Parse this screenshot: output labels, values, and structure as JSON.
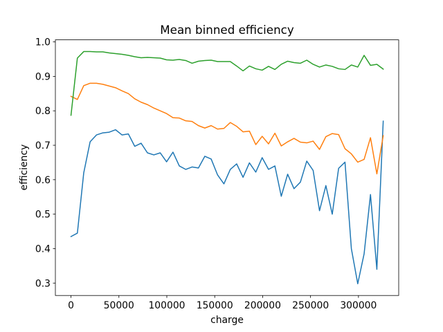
{
  "chart_data": {
    "type": "line",
    "title": "Mean binned efficiency",
    "xlabel": "charge",
    "ylabel": "efficiency",
    "x": [
      0,
      6650,
      13300,
      19950,
      26600,
      33250,
      39900,
      46550,
      53200,
      59850,
      66500,
      73150,
      79800,
      86450,
      93100,
      99750,
      106400,
      113050,
      119700,
      126350,
      133000,
      139650,
      146300,
      152950,
      159600,
      166250,
      172900,
      179550,
      186200,
      192850,
      199500,
      206150,
      212800,
      219450,
      226100,
      232750,
      239400,
      246050,
      252700,
      259350,
      266000,
      272650,
      279300,
      285950,
      292600,
      299250,
      305900,
      312550,
      319200,
      325850
    ],
    "series": [
      {
        "color": "#1f77b4",
        "values": [
          0.435,
          0.445,
          0.62,
          0.71,
          0.73,
          0.736,
          0.738,
          0.745,
          0.73,
          0.733,
          0.697,
          0.706,
          0.678,
          0.672,
          0.678,
          0.652,
          0.68,
          0.64,
          0.63,
          0.637,
          0.634,
          0.668,
          0.66,
          0.614,
          0.588,
          0.63,
          0.646,
          0.607,
          0.649,
          0.622,
          0.664,
          0.63,
          0.64,
          0.552,
          0.616,
          0.574,
          0.593,
          0.654,
          0.627,
          0.51,
          0.583,
          0.5,
          0.633,
          0.651,
          0.4,
          0.298,
          0.385,
          0.557,
          0.34,
          0.77
        ]
      },
      {
        "color": "#ff7f0e",
        "values": [
          0.842,
          0.833,
          0.873,
          0.88,
          0.88,
          0.877,
          0.872,
          0.867,
          0.858,
          0.85,
          0.835,
          0.825,
          0.818,
          0.808,
          0.8,
          0.792,
          0.78,
          0.779,
          0.771,
          0.769,
          0.757,
          0.75,
          0.757,
          0.747,
          0.749,
          0.766,
          0.755,
          0.739,
          0.741,
          0.702,
          0.726,
          0.704,
          0.735,
          0.698,
          0.71,
          0.72,
          0.709,
          0.707,
          0.712,
          0.688,
          0.725,
          0.734,
          0.731,
          0.69,
          0.675,
          0.651,
          0.659,
          0.722,
          0.617,
          0.728
        ]
      },
      {
        "color": "#2ca02c",
        "values": [
          0.787,
          0.953,
          0.972,
          0.972,
          0.971,
          0.971,
          0.968,
          0.966,
          0.964,
          0.961,
          0.957,
          0.954,
          0.955,
          0.954,
          0.953,
          0.948,
          0.947,
          0.949,
          0.946,
          0.938,
          0.944,
          0.946,
          0.947,
          0.943,
          0.943,
          0.943,
          0.93,
          0.916,
          0.93,
          0.922,
          0.918,
          0.929,
          0.92,
          0.935,
          0.944,
          0.94,
          0.938,
          0.947,
          0.935,
          0.927,
          0.933,
          0.929,
          0.922,
          0.92,
          0.933,
          0.927,
          0.961,
          0.932,
          0.935,
          0.921
        ]
      }
    ],
    "xlim": [
      -16300,
      342000
    ],
    "xticks": [
      0,
      50000,
      100000,
      150000,
      200000,
      250000,
      300000
    ],
    "ylim": [
      0.264,
      1.006
    ],
    "yticks": [
      0.3,
      0.4,
      0.5,
      0.6,
      0.7,
      0.8,
      0.9,
      {
        "value": 1,
        "label": "1.0"
      }
    ],
    "grid": false
  }
}
